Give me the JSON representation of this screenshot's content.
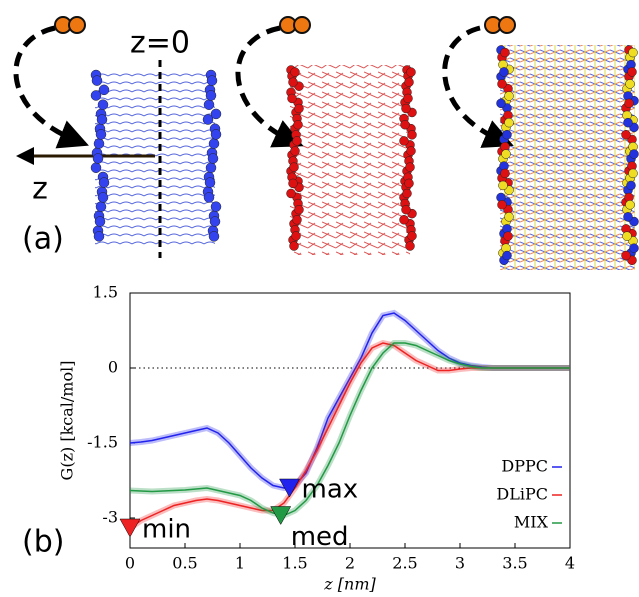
{
  "panel_a": {
    "label": "(a)",
    "z0_label": "z=0",
    "axis_label": "z"
  },
  "panel_b_label": "(b)",
  "chart_data": {
    "type": "line",
    "x_label": "z [nm]",
    "y_label": "G(z) [kcal/mol]",
    "x": [
      0,
      0.1,
      0.2,
      0.3,
      0.4,
      0.5,
      0.6,
      0.7,
      0.8,
      0.9,
      1.0,
      1.1,
      1.2,
      1.3,
      1.4,
      1.5,
      1.6,
      1.7,
      1.8,
      1.9,
      2.0,
      2.1,
      2.2,
      2.3,
      2.4,
      2.5,
      2.6,
      2.7,
      2.8,
      2.9,
      3.0,
      3.1,
      3.2,
      3.3,
      3.4,
      3.5,
      3.6,
      3.7,
      3.8,
      3.9,
      4.0
    ],
    "series": [
      {
        "name": "DPPC",
        "color": "#2222ee",
        "values": [
          -1.5,
          -1.48,
          -1.45,
          -1.4,
          -1.35,
          -1.3,
          -1.25,
          -1.2,
          -1.3,
          -1.5,
          -1.75,
          -2.0,
          -2.2,
          -2.35,
          -2.4,
          -2.35,
          -2.1,
          -1.6,
          -1.0,
          -0.6,
          -0.2,
          0.2,
          0.7,
          1.05,
          1.1,
          0.95,
          0.75,
          0.55,
          0.35,
          0.2,
          0.1,
          0.05,
          0.02,
          0,
          0,
          0,
          0,
          0,
          0,
          0,
          0
        ]
      },
      {
        "name": "DLiPC",
        "color": "#ee2222",
        "values": [
          -3.2,
          -3.05,
          -2.95,
          -2.85,
          -2.75,
          -2.7,
          -2.65,
          -2.62,
          -2.65,
          -2.7,
          -2.75,
          -2.8,
          -2.85,
          -2.85,
          -2.7,
          -2.4,
          -2.05,
          -1.65,
          -1.2,
          -0.75,
          -0.3,
          0.1,
          0.4,
          0.5,
          0.45,
          0.3,
          0.15,
          0.05,
          -0.05,
          -0.05,
          -0.02,
          0,
          0,
          0,
          0,
          0,
          0,
          0,
          0,
          0,
          0
        ]
      },
      {
        "name": "MIX",
        "color": "#229944",
        "values": [
          -2.45,
          -2.46,
          -2.47,
          -2.46,
          -2.45,
          -2.44,
          -2.42,
          -2.4,
          -2.45,
          -2.5,
          -2.55,
          -2.65,
          -2.8,
          -2.9,
          -2.95,
          -2.85,
          -2.65,
          -2.35,
          -1.95,
          -1.5,
          -0.95,
          -0.45,
          0.0,
          0.3,
          0.5,
          0.5,
          0.45,
          0.35,
          0.25,
          0.15,
          0.08,
          0.03,
          0,
          0,
          0,
          0,
          0,
          0,
          0,
          0,
          0
        ]
      }
    ],
    "xlim": [
      0,
      4
    ],
    "xticks": [
      0,
      0.5,
      1,
      1.5,
      2,
      2.5,
      3,
      3.5,
      4
    ],
    "ylim": [
      -3.6,
      1.5
    ],
    "yticks": [
      1.5,
      0,
      -1.5,
      -3
    ],
    "reference_line": 0,
    "legend": "lower-right",
    "annotations": [
      {
        "label": "min",
        "x": 0,
        "y": -3.2,
        "color": "#ee2222"
      },
      {
        "label": "med",
        "x": 1.37,
        "y": -2.95,
        "color": "#229944"
      },
      {
        "label": "max",
        "x": 1.45,
        "y": -2.4,
        "color": "#2222ee"
      }
    ]
  }
}
